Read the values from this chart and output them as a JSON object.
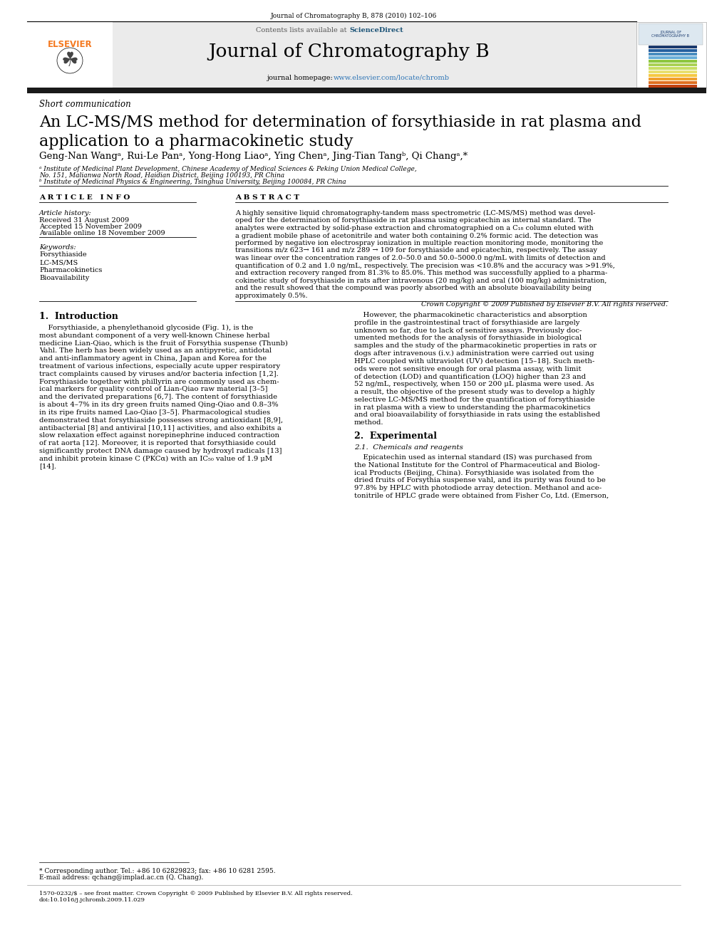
{
  "page_bg": "#ffffff",
  "top_journal_ref": "Journal of Chromatography B, 878 (2010) 102–106",
  "header_bg": "#e8e8e8",
  "contents_line": "Contents lists available at ScienceDirect",
  "sciencedirect_color": "#1a5276",
  "journal_title": "Journal of Chromatography B",
  "journal_homepage_plain": "journal homepage: ",
  "journal_homepage_link": "www.elsevier.com/locate/chromb",
  "homepage_link_color": "#1a5276",
  "black_bar_color": "#1a1a1a",
  "section_label": "Short communication",
  "paper_title_line1": "An LC-MS/MS method for determination of forsythiaside in rat plasma and",
  "paper_title_line2": "application to a pharmacokinetic study",
  "authors": "Geng-Nan Wangᵃ, Rui-Le Panᵃ, Yong-Hong Liaoᵃ, Ying Chenᵃ, Jing-Tian Tangᵇ, Qi Changᵃ,*",
  "affil_a": "ᵃ Institute of Medicinal Plant Development, Chinese Academy of Medical Sciences & Peking Union Medical College,",
  "affil_a2": "No. 151, Malianwa North Road, Haidian District, Beijing 100193, PR China",
  "affil_b": "ᵇ Institute of Medicinal Physics & Engineering, Tsinghua University, Beijing 100084, PR China",
  "article_info_header": "A R T I C L E   I N F O",
  "abstract_header": "A B S T R A C T",
  "article_history_label": "Article history:",
  "received": "Received 31 August 2009",
  "accepted": "Accepted 15 November 2009",
  "available": "Available online 18 November 2009",
  "keywords_label": "Keywords:",
  "keywords": [
    "Forsythiaside",
    "LC-MS/MS",
    "Pharmacokinetics",
    "Bioavailability"
  ],
  "abstract_lines": [
    "A highly sensitive liquid chromatography-tandem mass spectrometric (LC-MS/MS) method was devel-",
    "oped for the determination of forsythiaside in rat plasma using epicatechin as internal standard. The",
    "analytes were extracted by solid-phase extraction and chromatographied on a C₁₈ column eluted with",
    "a gradient mobile phase of acetonitrile and water both containing 0.2% formic acid. The detection was",
    "performed by negative ion electrospray ionization in multiple reaction monitoring mode, monitoring the",
    "transitions m/z 623→ 161 and m/z 289 → 109 for forsythiaside and epicatechin, respectively. The assay",
    "was linear over the concentration ranges of 2.0–50.0 and 50.0–5000.0 ng/mL with limits of detection and",
    "quantification of 0.2 and 1.0 ng/mL, respectively. The precision was <10.8% and the accuracy was >91.9%,",
    "and extraction recovery ranged from 81.3% to 85.0%. This method was successfully applied to a pharma-",
    "cokinetic study of forsythiaside in rats after intravenous (20 mg/kg) and oral (100 mg/kg) administration,",
    "and the result showed that the compound was poorly absorbed with an absolute bioavailability being",
    "approximately 0.5%."
  ],
  "copyright_line": "Crown Copyright © 2009 Published by Elsevier B.V. All rights reserved.",
  "intro_heading": "1.  Introduction",
  "intro_col1_lines": [
    "    Forsythiaside, a phenylethanoid glycoside (Fig. 1), is the",
    "most abundant component of a very well-known Chinese herbal",
    "medicine Lian-Qiao, which is the fruit of Forsythia suspense (Thunb)",
    "Vahl. The herb has been widely used as an antipyretic, antidotal",
    "and anti-inflammatory agent in China, Japan and Korea for the",
    "treatment of various infections, especially acute upper respiratory",
    "tract complaints caused by viruses and/or bacteria infection [1,2].",
    "Forsythiaside together with phillyrin are commonly used as chem-",
    "ical markers for quality control of Lian-Qiao raw material [3–5]",
    "and the derivated preparations [6,7]. The content of forsythiaside",
    "is about 4–7% in its dry green fruits named Qing-Qiao and 0.8–3%",
    "in its ripe fruits named Lao-Qiao [3–5]. Pharmacological studies",
    "demonstrated that forsythiaside possesses strong antioxidant [8,9],",
    "antibacterial [8] and antiviral [10,11] activities, and also exhibits a",
    "slow relaxation effect against norepinephrine induced contraction",
    "of rat aorta [12]. Moreover, it is reported that forsythiaside could",
    "significantly protect DNA damage caused by hydroxyl radicals [13]",
    "and inhibit protein kinase C (PKCα) with an IC₅₀ value of 1.9 μM",
    "[14]."
  ],
  "intro_col2_lines": [
    "    However, the pharmacokinetic characteristics and absorption",
    "profile in the gastrointestinal tract of forsythiaside are largely",
    "unknown so far, due to lack of sensitive assays. Previously doc-",
    "umented methods for the analysis of forsythiaside in biological",
    "samples and the study of the pharmacokinetic properties in rats or",
    "dogs after intravenous (i.v.) administration were carried out using",
    "HPLC coupled with ultraviolet (UV) detection [15–18]. Such meth-",
    "ods were not sensitive enough for oral plasma assay, with limit",
    "of detection (LOD) and quantification (LOQ) higher than 23 and",
    "52 ng/mL, respectively, when 150 or 200 μL plasma were used. As",
    "a result, the objective of the present study was to develop a highly",
    "selective LC-MS/MS method for the quantification of forsythiaside",
    "in rat plasma with a view to understanding the pharmacokinetics",
    "and oral bioavailability of forsythiaside in rats using the established",
    "method."
  ],
  "section2_heading": "2.  Experimental",
  "section21_heading": "2.1.  Chemicals and reagents",
  "section21_lines": [
    "    Epicatechin used as internal standard (IS) was purchased from",
    "the National Institute for the Control of Pharmaceutical and Biolog-",
    "ical Products (Beijing, China). Forsythiaside was isolated from the",
    "dried fruits of Forsythia suspense vahl, and its purity was found to be",
    "97.8% by HPLC with photodiode array detection. Methanol and ace-",
    "tonitrile of HPLC grade were obtained from Fisher Co, Ltd. (Emerson,"
  ],
  "footnote_star": "* Corresponding author. Tel.: +86 10 62829823; fax: +86 10 6281 2595.",
  "footnote_email": "E-mail address: qchang@implad.ac.cn (Q. Chang).",
  "footer_issn": "1570-0232/$ – see front matter. Crown Copyright © 2009 Published by Elsevier B.V. All rights reserved.",
  "footer_doi": "doi:10.1016/j.jchromb.2009.11.029",
  "elsevier_orange": "#f47920",
  "link_blue": "#2e75b6",
  "cover_bar_colors": [
    "#1a3a6e",
    "#2560a0",
    "#4a8ec0",
    "#6aafd8",
    "#8dc63f",
    "#aad155",
    "#c8de65",
    "#e8e070",
    "#f5c842",
    "#f0a030",
    "#e07020",
    "#c04010"
  ]
}
